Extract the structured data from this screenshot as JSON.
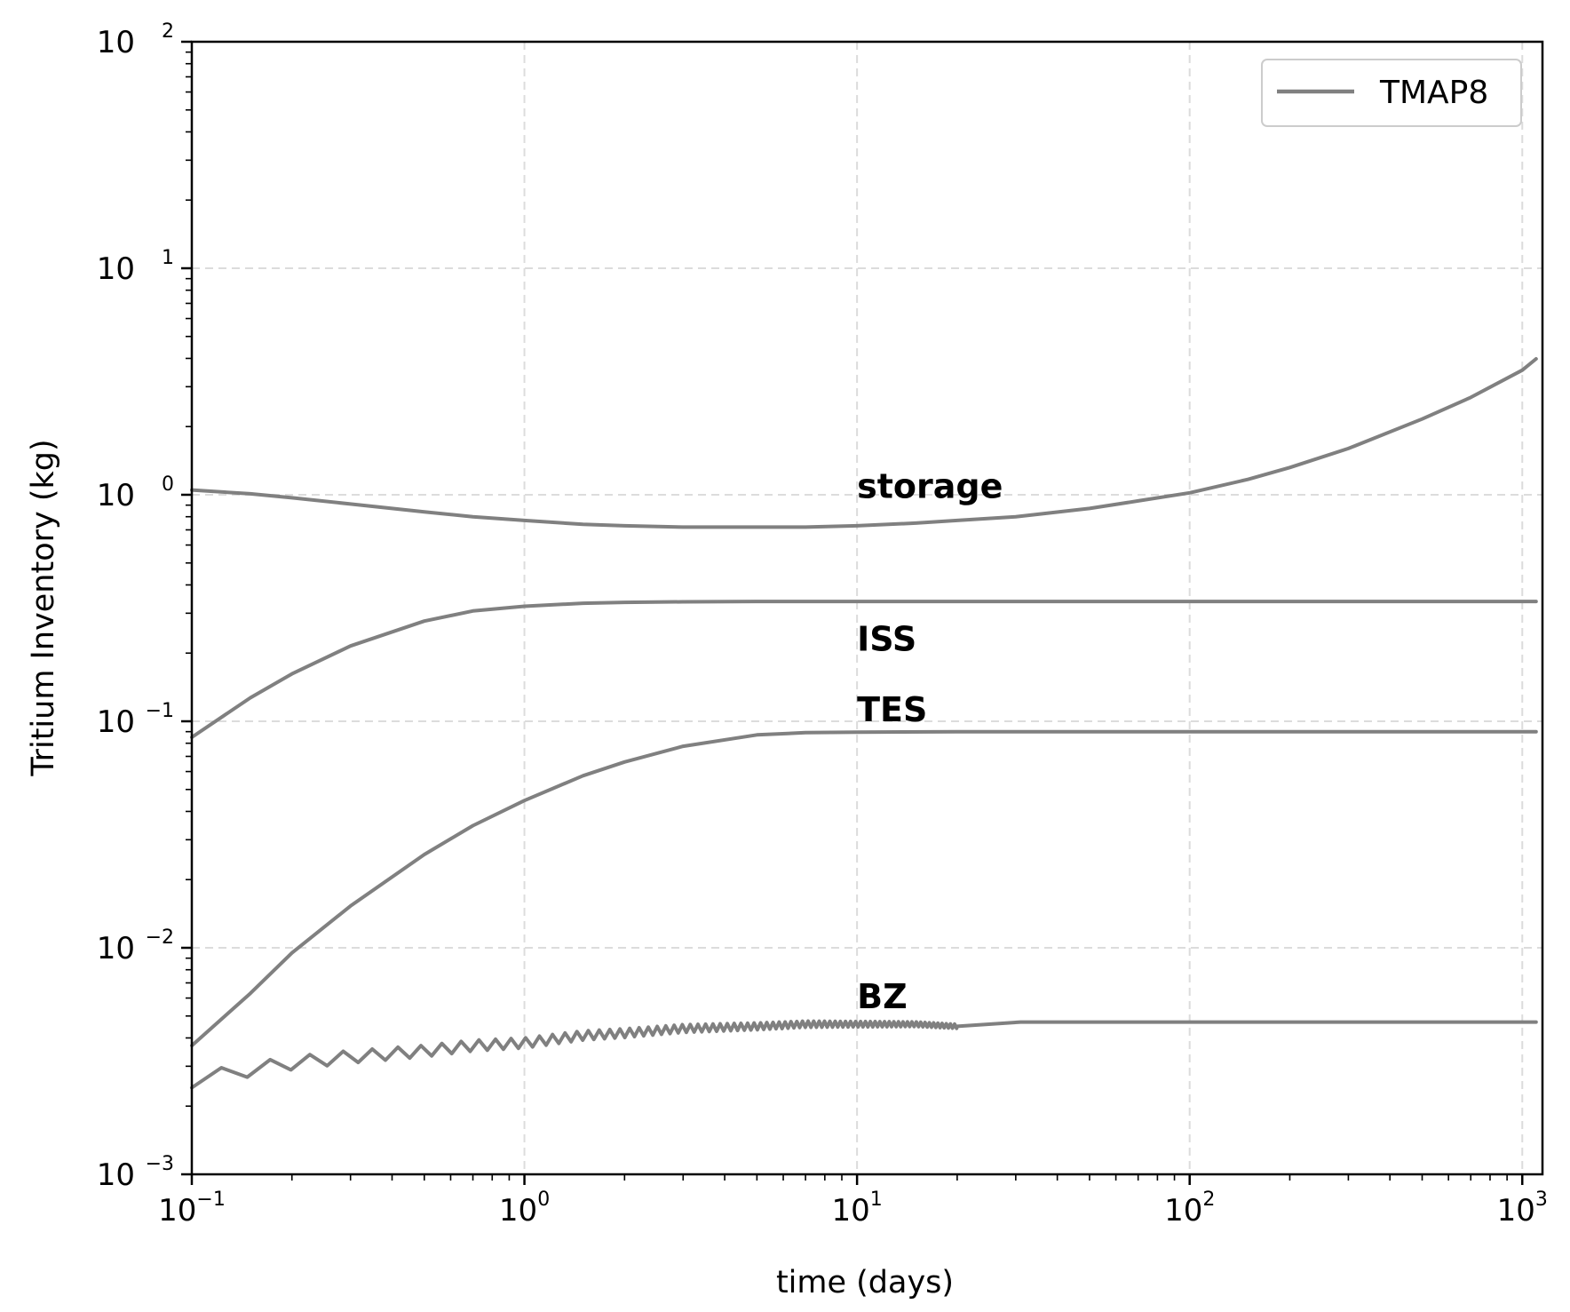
{
  "chart_data": {
    "type": "line",
    "title": "",
    "xlabel": "time (days)",
    "ylabel": "Tritium Inventory (kg)",
    "xscale": "log",
    "yscale": "log",
    "xlim": [
      0.1,
      1150
    ],
    "ylim": [
      0.001,
      100
    ],
    "grid": true,
    "legend": {
      "placement": "top-right",
      "entries": [
        {
          "label": "TMAP8",
          "color": "#808080"
        }
      ]
    },
    "line_color": "#808080",
    "x_ticks": [
      {
        "value": 0.1,
        "base": "10",
        "exp": "−1"
      },
      {
        "value": 1,
        "base": "10",
        "exp": "0"
      },
      {
        "value": 10,
        "base": "10",
        "exp": "1"
      },
      {
        "value": 100,
        "base": "10",
        "exp": "2"
      },
      {
        "value": 1000,
        "base": "10",
        "exp": "3"
      }
    ],
    "y_ticks": [
      {
        "value": 0.001,
        "base": "10",
        "exp": "−3"
      },
      {
        "value": 0.01,
        "base": "10",
        "exp": "−2"
      },
      {
        "value": 0.1,
        "base": "10",
        "exp": "−1"
      },
      {
        "value": 1,
        "base": "10",
        "exp": "0"
      },
      {
        "value": 10,
        "base": "10",
        "exp": "1"
      },
      {
        "value": 100,
        "base": "10",
        "exp": "2"
      }
    ],
    "series": [
      {
        "label": "storage",
        "label_anchor": [
          10,
          0.97
        ],
        "x": [
          0.1,
          0.15,
          0.2,
          0.3,
          0.5,
          0.7,
          1,
          1.5,
          2,
          3,
          5,
          7,
          10,
          15,
          20,
          30,
          50,
          70,
          100,
          150,
          200,
          300,
          500,
          700,
          1000,
          1100
        ],
        "y": [
          1.05,
          1.01,
          0.97,
          0.91,
          0.84,
          0.8,
          0.77,
          0.74,
          0.73,
          0.72,
          0.72,
          0.72,
          0.73,
          0.75,
          0.77,
          0.8,
          0.87,
          0.94,
          1.02,
          1.17,
          1.32,
          1.6,
          2.16,
          2.69,
          3.55,
          3.98
        ]
      },
      {
        "label": "ISS",
        "label_anchor": [
          10,
          0.205
        ],
        "x": [
          0.1,
          0.15,
          0.2,
          0.3,
          0.5,
          0.7,
          1,
          1.5,
          2,
          3,
          5,
          10,
          20,
          100,
          1000,
          1100
        ],
        "y": [
          0.085,
          0.127,
          0.162,
          0.215,
          0.277,
          0.307,
          0.322,
          0.332,
          0.335,
          0.337,
          0.338,
          0.338,
          0.338,
          0.338,
          0.338,
          0.338
        ]
      },
      {
        "label": "TES",
        "label_anchor": [
          10,
          0.1
        ],
        "x": [
          0.1,
          0.15,
          0.2,
          0.3,
          0.5,
          0.7,
          1,
          1.5,
          2,
          3,
          5,
          7,
          10,
          20,
          100,
          1000,
          1100
        ],
        "y": [
          0.0037,
          0.0063,
          0.0095,
          0.0153,
          0.0258,
          0.0346,
          0.0447,
          0.0575,
          0.0661,
          0.0776,
          0.0871,
          0.0891,
          0.0895,
          0.09,
          0.09,
          0.09,
          0.09
        ]
      },
      {
        "label": "BZ",
        "label_anchor": [
          10,
          0.0054
        ],
        "oscillating_until": 20,
        "x": [
          0.1,
          0.15,
          0.2,
          0.3,
          0.5,
          0.7,
          1,
          1.5,
          2,
          3,
          5,
          7,
          10,
          15,
          20,
          31,
          100,
          1000,
          1100
        ],
        "y": [
          0.0026,
          0.0029,
          0.0031,
          0.0033,
          0.0035,
          0.0037,
          0.0038,
          0.0041,
          0.0042,
          0.0044,
          0.0045,
          0.0046,
          0.0046,
          0.0046,
          0.0045,
          0.0047,
          0.0047,
          0.0047,
          0.0047
        ]
      }
    ]
  }
}
